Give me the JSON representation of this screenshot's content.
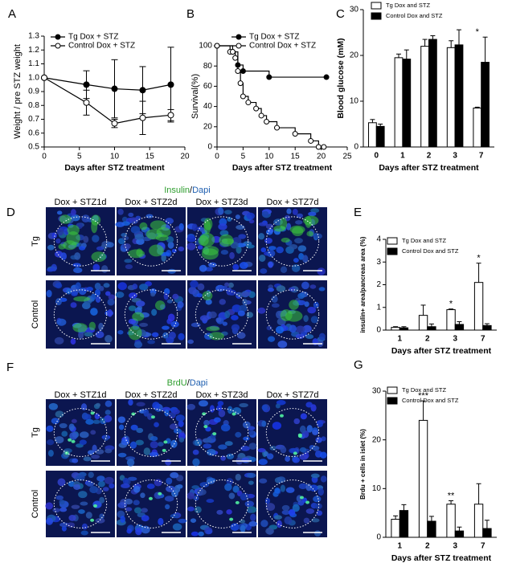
{
  "chart_data": [
    {
      "panel": "A",
      "type": "line",
      "x": [
        0,
        6,
        10,
        14,
        18
      ],
      "xlim": [
        0,
        20
      ],
      "xticks": [
        0,
        5,
        10,
        15,
        20
      ],
      "ylim": [
        0.5,
        1.3
      ],
      "yticks": [
        0.5,
        0.6,
        0.7,
        0.8,
        0.9,
        {
          "value": 1,
          "label": "1.0"
        },
        1.1,
        1.2,
        1.3
      ],
      "xlabel": "Days after STZ treatment",
      "ylabel": "Weight / pre STZ weight",
      "legend": "upper left",
      "series": [
        {
          "name": "Tg Dox + STZ",
          "color": "#000000",
          "marker_fill": "#000000",
          "values": [
            1,
            0.95,
            0.92,
            0.91,
            0.95
          ],
          "errors": [
            null,
            0.1,
            0.21,
            0.17,
            0.27
          ]
        },
        {
          "name": "Control Dox + STZ",
          "color": "#000000",
          "marker_fill": "#ffffff",
          "values": [
            1,
            0.82,
            0.67,
            0.71,
            0.73
          ],
          "errors": [
            null,
            0.09,
            0.03,
            0.12,
            0.04
          ]
        }
      ]
    },
    {
      "panel": "B",
      "type": "step",
      "xlim": [
        0,
        25
      ],
      "xticks": [
        0,
        5,
        10,
        15,
        20,
        25
      ],
      "ylim": [
        0,
        100
      ],
      "yticks": [
        0,
        20,
        40,
        60,
        80,
        100
      ],
      "xlabel": "Days after STZ treatment",
      "ylabel": "Survival(%)",
      "legend": "upper left",
      "series": [
        {
          "name": "Tg Dox + STZ",
          "color": "#000000",
          "marker_fill": "#000000",
          "x": [
            0,
            3,
            4,
            5,
            10,
            21
          ],
          "values": [
            100,
            94,
            81,
            75,
            69,
            69
          ]
        },
        {
          "name": "Control Dox + STZ",
          "color": "#000000",
          "marker_fill": "#ffffff",
          "x": [
            0,
            2.5,
            3,
            3.5,
            4,
            4.5,
            5,
            6,
            7.5,
            8.5,
            9.5,
            11.5,
            15,
            18,
            19.5,
            20.5
          ],
          "values": [
            100,
            94,
            94,
            88,
            75,
            63,
            50,
            44,
            38,
            31,
            25,
            19,
            13,
            6,
            0,
            0
          ]
        }
      ]
    },
    {
      "panel": "C",
      "type": "bar",
      "categories": [
        "0",
        "1",
        "2",
        "3",
        "7"
      ],
      "ylim": [
        0,
        30
      ],
      "yticks": [
        0,
        10,
        20,
        30
      ],
      "xlabel": "Days after STZ treatment",
      "ylabel": "Blood glucose (mM)",
      "legend": "upper left",
      "annotations": [
        null,
        null,
        null,
        null,
        "*"
      ],
      "series": [
        {
          "name": "Tg Dox and STZ",
          "color": "#ffffff",
          "values": [
            5.3,
            19.5,
            22,
            21.7,
            8.5
          ],
          "errors": [
            0.7,
            0.8,
            1.5,
            1.5,
            0.2
          ]
        },
        {
          "name": "Control Dox and STZ",
          "color": "#000000",
          "values": [
            4.5,
            19.2,
            23.5,
            22.3,
            18.5
          ],
          "errors": [
            0.5,
            2,
            0.8,
            3.3,
            5.5
          ]
        }
      ]
    },
    {
      "panel": "E",
      "type": "bar",
      "categories": [
        "1",
        "2",
        "3",
        "7"
      ],
      "ylim": [
        0,
        4
      ],
      "yticks": [
        0,
        1,
        2,
        3,
        4
      ],
      "xlabel": "Days after STZ treatment",
      "ylabel": "insulin+ area/pancreas area (%)",
      "legend": "upper left",
      "annotations": [
        null,
        null,
        "*",
        "*"
      ],
      "series": [
        {
          "name": "Tg Dox and STZ",
          "color": "#ffffff",
          "values": [
            0.12,
            0.65,
            0.9,
            2.1
          ],
          "errors": [
            0.03,
            0.45,
            0.03,
            0.85
          ]
        },
        {
          "name": "Control Dox and STZ",
          "color": "#000000",
          "values": [
            0.1,
            0.15,
            0.25,
            0.2
          ],
          "errors": [
            0.05,
            0.12,
            0.12,
            0.08
          ]
        }
      ]
    },
    {
      "panel": "G",
      "type": "bar",
      "categories": [
        "1",
        "2",
        "3",
        "7"
      ],
      "ylim": [
        0,
        30
      ],
      "yticks": [
        0,
        10,
        20,
        30
      ],
      "xlabel": "Days after STZ treatment",
      "ylabel": "Brdu + cells in islet (%)",
      "legend": "upper left",
      "annotations": [
        null,
        "***",
        "**",
        null
      ],
      "series": [
        {
          "name": "Tg Dox and STZ",
          "color": "#ffffff",
          "values": [
            3.7,
            24,
            6.8,
            6.8
          ],
          "errors": [
            0.7,
            4,
            0.7,
            4.2
          ]
        },
        {
          "name": "Control Dox and STZ",
          "color": "#000000",
          "values": [
            5.5,
            3.3,
            1.3,
            1.8
          ],
          "errors": [
            1.2,
            1,
            0.8,
            1.7
          ]
        }
      ]
    }
  ],
  "image_panels": [
    {
      "panel": "D",
      "title": [
        {
          "text": "Insulin",
          "color": "#2e9e2e"
        },
        {
          "text": "/",
          "color": "#000000"
        },
        {
          "text": "Dapi",
          "color": "#1f5fb0"
        }
      ],
      "columns": [
        "Dox + STZ1d",
        "Dox + STZ2d",
        "Dox + STZ3d",
        "Dox + STZ7d"
      ],
      "rows": [
        "Tg",
        "Control"
      ],
      "stain": "#3cc83c"
    },
    {
      "panel": "F",
      "title": [
        {
          "text": "BrdU",
          "color": "#2e9e2e"
        },
        {
          "text": "/",
          "color": "#000000"
        },
        {
          "text": "Dapi",
          "color": "#1f5fb0"
        }
      ],
      "columns": [
        "Dox + STZ1d",
        "Dox + STZ2d",
        "Dox + STZ3d",
        "Dox + STZ7d"
      ],
      "rows": [
        "Tg",
        "Control"
      ],
      "stain": "#50f0a0"
    }
  ]
}
